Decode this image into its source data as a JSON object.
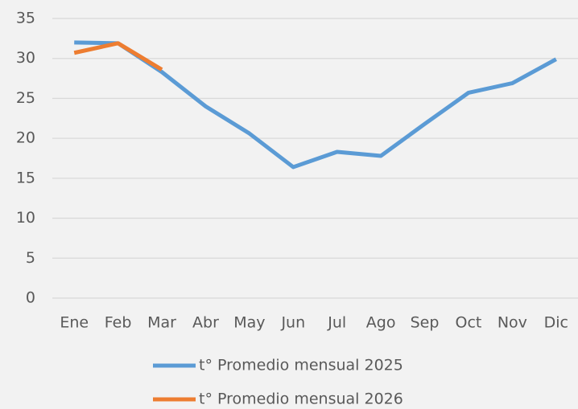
{
  "chart_data": {
    "type": "line",
    "categories": [
      "Ene",
      "Feb",
      "Mar",
      "Abr",
      "May",
      "Jun",
      "Jul",
      "Ago",
      "Sep",
      "Oct",
      "Nov",
      "Dic"
    ],
    "series": [
      {
        "name": "t° Promedio mensual 2025",
        "color": "#5b9bd5",
        "values": [
          32.0,
          31.9,
          28.3,
          24.0,
          20.6,
          16.4,
          18.3,
          17.8,
          21.8,
          25.7,
          26.9,
          29.9
        ]
      },
      {
        "name": "t° Promedio mensual 2026",
        "color": "#ed7d31",
        "values": [
          30.7,
          31.9,
          28.6,
          null,
          null,
          null,
          null,
          null,
          null,
          null,
          null,
          null
        ]
      }
    ],
    "ylim": [
      0,
      35
    ],
    "yticks": [
      0,
      5,
      10,
      15,
      20,
      25,
      30,
      35
    ],
    "grid": true,
    "legend": "bottom"
  }
}
